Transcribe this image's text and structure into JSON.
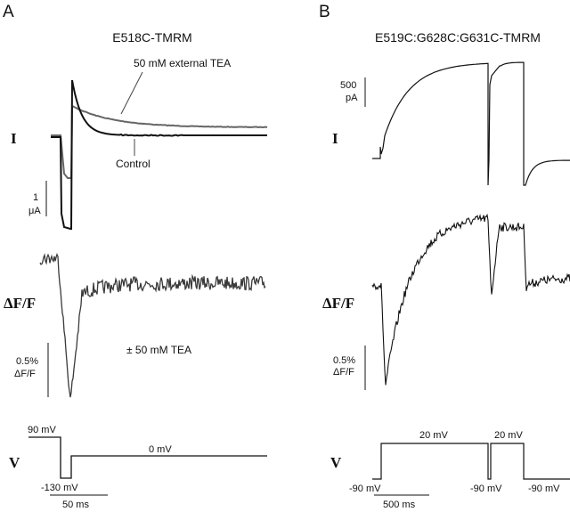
{
  "panels": [
    {
      "letter": "A",
      "title": "E518C-TMRM",
      "row_labels": {
        "current": "I",
        "fluorescence": "ΔF/F",
        "voltage": "V"
      },
      "annotations": {
        "tea_trace": "50 mM external TEA",
        "control_trace": "Control",
        "fluor_note": "± 50 mM TEA"
      },
      "scale_bars": {
        "current_value": "1",
        "current_unit": "μA",
        "fluor_value": "0.5%",
        "fluor_unit": "ΔF/F",
        "time": "50 ms"
      },
      "voltage_labels": {
        "hold": "90 mV",
        "step": "-130 mV",
        "test": "0 mV"
      }
    },
    {
      "letter": "B",
      "title": "E519C:G628C:G631C-TMRM",
      "row_labels": {
        "current": "I",
        "fluorescence": "ΔF/F",
        "voltage": "V"
      },
      "scale_bars": {
        "current_value": "500",
        "current_unit": "pA",
        "fluor_value": "0.5%",
        "fluor_unit": "ΔF/F",
        "time": "500 ms"
      },
      "voltage_labels": {
        "step1": "20 mV",
        "step2": "20 mV",
        "hold1": "-90 mV",
        "hold2": "-90 mV",
        "hold3": "-90 mV"
      }
    }
  ],
  "chart_data": [
    {
      "type": "line",
      "panel": "A",
      "title": "E518C-TMRM",
      "rows": [
        "I",
        "ΔF/F",
        "V"
      ],
      "series": [
        {
          "name": "Control",
          "row": "I"
        },
        {
          "name": "50 mM external TEA",
          "row": "I"
        },
        {
          "name": "± 50 mM TEA",
          "row": "ΔF/F"
        }
      ],
      "voltage_protocol_mV": [
        90,
        -130,
        0
      ],
      "scale_bars": {
        "current": "1 μA",
        "fluorescence": "0.5% ΔF/F",
        "time": "50 ms"
      }
    },
    {
      "type": "line",
      "panel": "B",
      "title": "E519C:G628C:G631C-TMRM",
      "rows": [
        "I",
        "ΔF/F",
        "V"
      ],
      "voltage_protocol_mV": [
        -90,
        20,
        -90,
        20,
        -90
      ],
      "scale_bars": {
        "current": "500 pA",
        "fluorescence": "0.5% ΔF/F",
        "time": "500 ms"
      }
    }
  ],
  "colors": {
    "control": "#111111",
    "tea": "#666666",
    "fluor": "#3a3a3a",
    "axis": "#111111"
  }
}
